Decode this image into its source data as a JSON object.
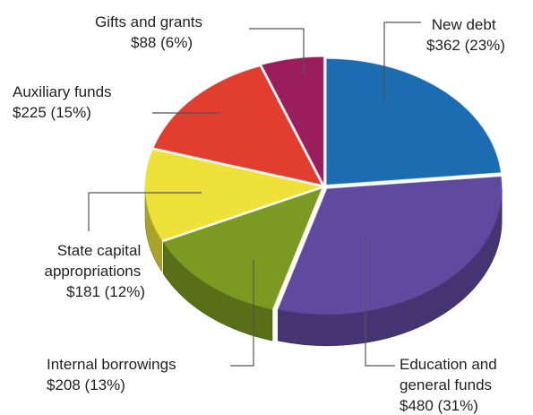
{
  "chart_data": {
    "type": "pie",
    "title": "",
    "unit": "$",
    "slices": [
      {
        "name": "New debt",
        "value": 362,
        "percent": "23%",
        "value_label": "$362 (23%)",
        "color": "#1c6cb2"
      },
      {
        "name": "Education and general funds",
        "value": 480,
        "percent": "31%",
        "value_label": "$480 (31%)",
        "color": "#5e4a9e"
      },
      {
        "name": "Internal borrowings",
        "value": 208,
        "percent": "13%",
        "value_label": "$208 (13%)",
        "color": "#7a9a22"
      },
      {
        "name": "State capital appropriations",
        "value": 181,
        "percent": "12%",
        "value_label": "$181 (12%)",
        "color": "#eee13a"
      },
      {
        "name": "Auxiliary funds",
        "value": 225,
        "percent": "15%",
        "value_label": "$225 (15%)",
        "color": "#e23e2f"
      },
      {
        "name": "Gifts and grants",
        "value": 88,
        "percent": "6%",
        "value_label": "$88 (6%)",
        "color": "#9a1d5e"
      }
    ],
    "labels": [
      {
        "lines": [
          "New debt",
          "$362 (23%)"
        ]
      },
      {
        "lines": [
          "Education and",
          "general funds",
          "$480 (31%)"
        ]
      },
      {
        "lines": [
          "Internal borrowings",
          "$208 (13%)"
        ]
      },
      {
        "lines": [
          "State capital",
          "appropriations",
          "$181 (12%)"
        ]
      },
      {
        "lines": [
          "Auxiliary funds",
          "$225 (15%)"
        ]
      },
      {
        "lines": [
          "Gifts and grants",
          "$88 (6%)"
        ]
      }
    ],
    "style": "3d-exploded"
  }
}
